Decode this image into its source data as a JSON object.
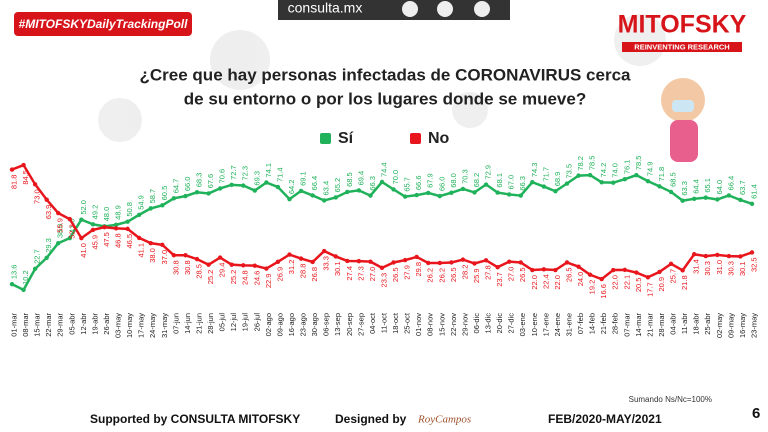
{
  "chart_data": {
    "type": "line",
    "hashtag": "#MITOFSKYDailyTrackingPoll",
    "site": "consulta.mx",
    "brand": "MITOFSKY",
    "brand_tagline": "REINVENTING RESEARCH",
    "title": "¿Cree que hay personas infectadas de CORONAVIRUS cerca",
    "subtitle": "de su entorno o por los lugares donde se mueve?",
    "note": "Sumando Ns/Nc=100%",
    "footer_left": "Supported by   CONSULTA  MITOFSKY",
    "footer_designed": "Designed by",
    "footer_designer": "RoyCampos",
    "footer_period": "FEB/2020-MAY/2021",
    "page_number": "6",
    "ylim": [
      0,
      100
    ],
    "categories": [
      "01-mar",
      "08-mar",
      "15-mar",
      "22-mar",
      "29-mar",
      "05-abr",
      "12-abr",
      "19-abr",
      "26-abr",
      "03-may",
      "10-may",
      "17-may",
      "24-may",
      "31-may",
      "07-jun",
      "14-jun",
      "21-jun",
      "28-jun",
      "05-jul",
      "12-jul",
      "19-jul",
      "26-jul",
      "02-ago",
      "09-ago",
      "16-ago",
      "23-ago",
      "30-ago",
      "06-sep",
      "13-sep",
      "20-sep",
      "27-sep",
      "04-oct",
      "11-oct",
      "18-oct",
      "25-oct",
      "01-nov",
      "08-nov",
      "15-nov",
      "22-nov",
      "29-nov",
      "06-dic",
      "13-dic",
      "20-dic",
      "27-dic",
      "03-ene",
      "10-ene",
      "17-ene",
      "24-ene",
      "31-ene",
      "07-feb",
      "14-feb",
      "21-feb",
      "28-feb",
      "07-mar",
      "14-mar",
      "21-mar",
      "28-mar",
      "04-abr",
      "11-abr",
      "18-abr",
      "25-abr",
      "02-may",
      "09-may",
      "16-may",
      "23-may"
    ],
    "series": [
      {
        "name": "Sí",
        "color": "#1fb25a",
        "values": [
          13.6,
          10.2,
          22.7,
          29.3,
          38.0,
          41.0,
          52.0,
          49.2,
          48.0,
          48.9,
          50.8,
          54.9,
          58.7,
          60.5,
          64.7,
          66.0,
          68.3,
          67.6,
          70.6,
          72.7,
          72.3,
          69.3,
          74.1,
          71.4,
          64.2,
          69.1,
          66.4,
          63.4,
          65.2,
          68.5,
          69.4,
          66.3,
          74.4,
          70.0,
          65.7,
          66.6,
          67.9,
          66.0,
          68.0,
          70.3,
          68.2,
          72.9,
          68.1,
          67.0,
          66.3,
          74.3,
          71.7,
          68.9,
          73.5,
          78.2,
          78.5,
          74.2,
          74.0,
          76.1,
          78.5,
          74.9,
          71.8,
          68.5,
          63.3,
          64.4,
          65.1,
          64.0,
          66.4,
          63.7,
          61.4
        ],
        "value_labels": [
          "13.6",
          "10.2",
          "22.7",
          "29.3",
          "38.0",
          "41.0",
          "52.0",
          "49.2",
          "48.0",
          "48.9",
          "50.8",
          "54.9",
          "58.7",
          "60.5",
          "64.7",
          "66.0",
          "68.3",
          "67.6",
          "70.6",
          "72.7",
          "72.3",
          "69.3",
          "74.1",
          "71.4",
          "64.2",
          "69.1",
          "66.4",
          "63.4",
          "65.2",
          "68.5",
          "69.4",
          "66.3",
          "74.4",
          "70.0",
          "65.7",
          "66.6",
          "67.9",
          "66.0",
          "68.0",
          "70.3",
          "68.2",
          "72.9",
          "68.1",
          "67.0",
          "66.3",
          "74.3",
          "71.7",
          "68.9",
          "73.5",
          "78.2",
          "78.5",
          "74.2",
          "74.0",
          "76.1",
          "78.5",
          "74.9",
          "71.8",
          "68.5",
          "63.3",
          "64.4",
          "65.1",
          "64.0",
          "66.4",
          "63.7",
          "61.4"
        ]
      },
      {
        "name": "No",
        "color": "#e8161c",
        "values": [
          81.8,
          84.5,
          73.0,
          63.9,
          55.9,
          52.3,
          41.0,
          45.9,
          47.5,
          46.8,
          46.5,
          41.1,
          38.0,
          37.0,
          30.8,
          30.8,
          28.5,
          25.2,
          29.4,
          25.2,
          24.8,
          24.6,
          22.9,
          26.9,
          31.2,
          28.8,
          26.8,
          33.3,
          30.1,
          27.4,
          27.3,
          27.0,
          23.3,
          26.5,
          27.9,
          29.8,
          26.2,
          26.2,
          26.5,
          28.2,
          25.9,
          27.8,
          23.7,
          27.0,
          26.5,
          22.0,
          22.4,
          22.0,
          26.5,
          24.0,
          19.2,
          16.6,
          22.0,
          22.1,
          20.5,
          17.7,
          20.9,
          25.7,
          21.8,
          31.4,
          30.3,
          31.0,
          30.3,
          30.1,
          32.5
        ],
        "value_labels": [
          "81.8",
          "84.5",
          "73.0",
          "63.9",
          "55.9",
          "52.3",
          "41.0",
          "45.9",
          "47.5",
          "46.8",
          "46.5",
          "41.1",
          "38.0",
          "37.0",
          "30.8",
          "30.8",
          "28.5",
          "25.2",
          "29.4",
          "25.2",
          "24.8",
          "24.6",
          "22.9",
          "26.9",
          "31.2",
          "28.8",
          "26.8",
          "33.3",
          "30.1",
          "27.4",
          "27.3",
          "27.0",
          "23.3",
          "26.5",
          "27.9",
          "29.8",
          "26.2",
          "26.2",
          "26.5",
          "28.2",
          "25.9",
          "27.8",
          "23.7",
          "27.0",
          "26.5",
          "22.0",
          "22.4",
          "22.0",
          "26.5",
          "24.0",
          "19.2",
          "16.6",
          "22.0",
          "22.1",
          "20.5",
          "17.7",
          "20.9",
          "25.7",
          "21.8",
          "31.4",
          "30.3",
          "31.0",
          "30.3",
          "30.1",
          "32.5"
        ]
      }
    ]
  }
}
